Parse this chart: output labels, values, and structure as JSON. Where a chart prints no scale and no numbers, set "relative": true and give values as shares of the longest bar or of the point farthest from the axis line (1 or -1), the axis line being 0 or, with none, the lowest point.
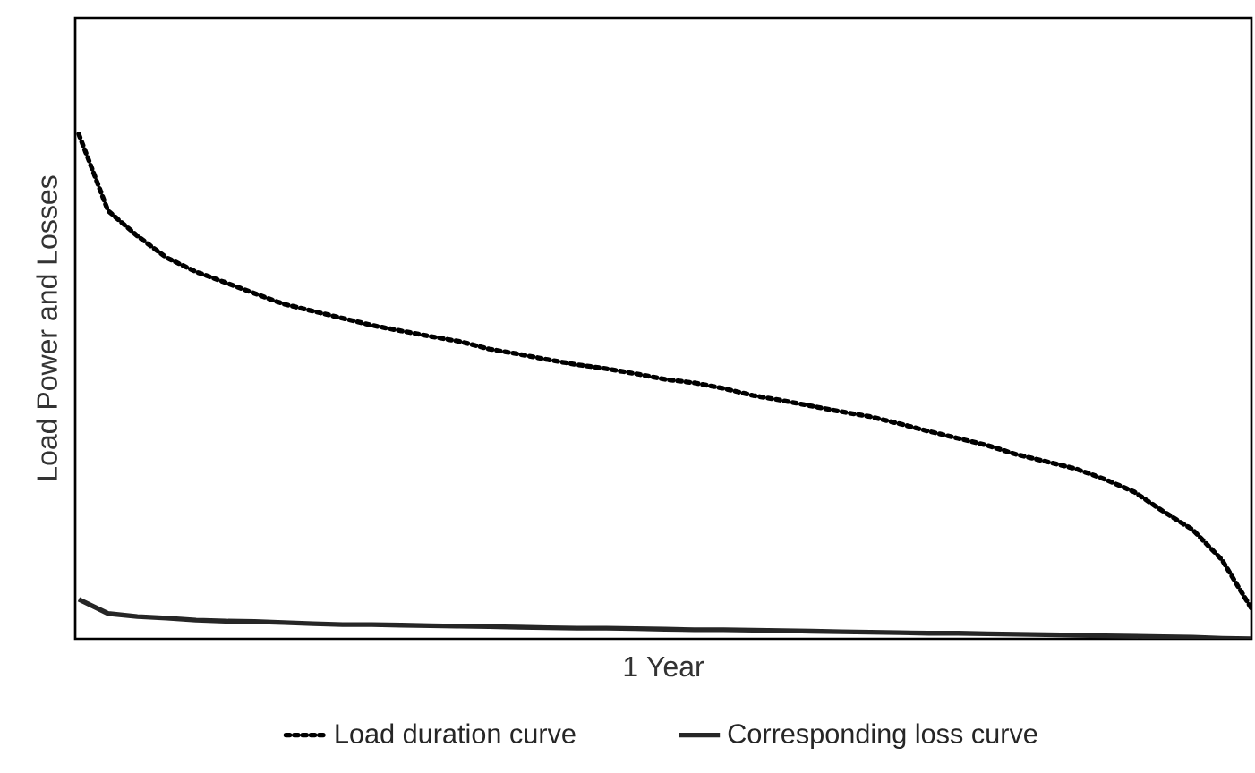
{
  "chart_data": {
    "type": "line",
    "relative": true,
    "xlabel": "1 Year",
    "ylabel": "Load Power and Losses",
    "legend": "bottom",
    "tick_labels": false,
    "marker": "none",
    "categories": [
      null,
      null,
      null,
      null,
      null,
      null,
      null,
      null,
      null,
      null,
      null,
      null,
      null,
      null,
      null,
      null,
      null,
      null,
      null,
      null,
      null,
      null,
      null,
      null,
      null,
      null,
      null,
      null,
      null,
      null,
      null,
      null,
      null,
      null,
      null,
      null,
      null,
      null,
      null,
      null,
      null
    ],
    "series": [
      {
        "name": "Load duration curve",
        "color": "#000000",
        "line_style": "dotted",
        "values": [
          1,
          0.848,
          0.798,
          0.755,
          0.727,
          0.706,
          0.684,
          0.663,
          0.649,
          0.635,
          0.621,
          0.61,
          0.599,
          0.589,
          0.574,
          0.564,
          0.553,
          0.543,
          0.535,
          0.525,
          0.514,
          0.507,
          0.496,
          0.482,
          0.472,
          0.461,
          0.45,
          0.44,
          0.426,
          0.411,
          0.397,
          0.383,
          0.365,
          0.351,
          0.337,
          0.316,
          0.291,
          0.252,
          0.216,
          0.156,
          0.06
        ]
      },
      {
        "name": "Corresponding loss curve",
        "color": "#262626",
        "line_style": "solid",
        "values": [
          0.078,
          0.05,
          0.044,
          0.041,
          0.037,
          0.035,
          0.034,
          0.032,
          0.03,
          0.028,
          0.028,
          0.027,
          0.026,
          0.025,
          0.024,
          0.023,
          0.022,
          0.021,
          0.021,
          0.02,
          0.019,
          0.018,
          0.018,
          0.017,
          0.016,
          0.015,
          0.014,
          0.013,
          0.012,
          0.011,
          0.011,
          0.01,
          0.009,
          0.008,
          0.007,
          0.006,
          0.005,
          0.004,
          0.003,
          0.001,
          0
        ]
      }
    ]
  }
}
